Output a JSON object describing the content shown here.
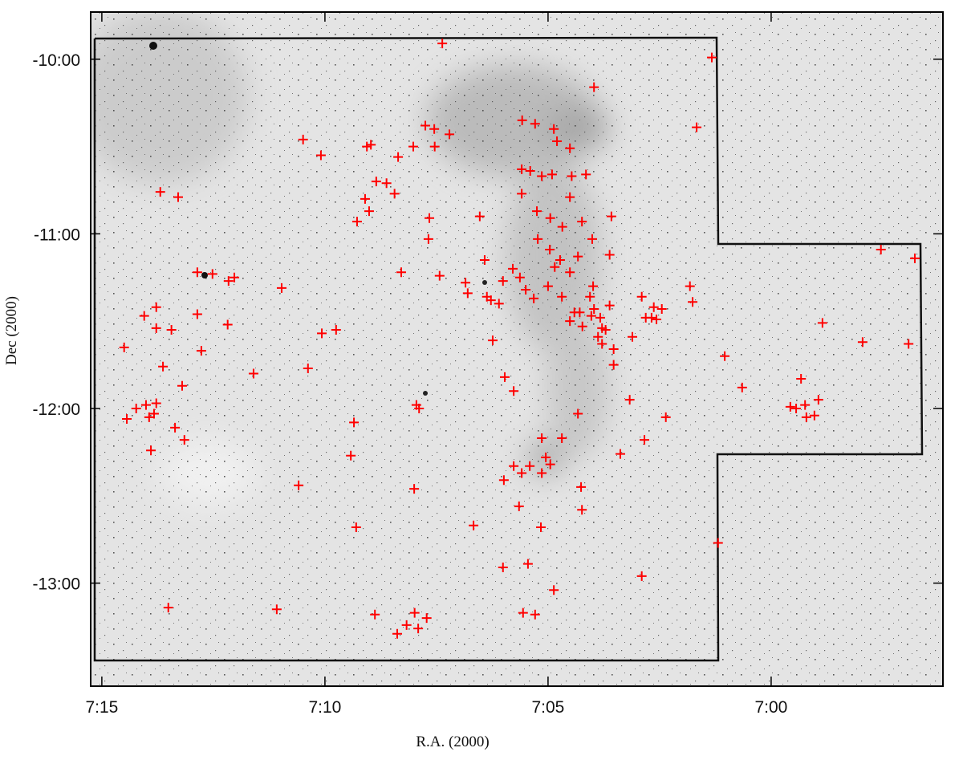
{
  "chart_data": {
    "type": "scatter",
    "x_label": "R.A. (2000)",
    "y_label": "Dec (2000)",
    "color": "#ff0000",
    "marker": "+",
    "xlim": [
      15.25,
      -3.85
    ],
    "ylim": [
      -13.59,
      -9.73
    ],
    "xticks": [
      {
        "value": 15,
        "label": "7:15"
      },
      {
        "value": 10,
        "label": "7:10"
      },
      {
        "value": 5,
        "label": "7:05"
      },
      {
        "value": 0,
        "label": "7:00"
      }
    ],
    "yticks": [
      {
        "value": -10,
        "label": "-10:00"
      },
      {
        "value": -11,
        "label": "-11:00"
      },
      {
        "value": -12,
        "label": "-12:00"
      },
      {
        "value": -13,
        "label": "-13:00"
      }
    ],
    "x": [
      14.5,
      14.05,
      13.78,
      13.78,
      13.44,
      13.63,
      13.69,
      13.29,
      12.86,
      12.52,
      12.16,
      12.03,
      12.86,
      12.77,
      12.18,
      13.2,
      13.15,
      13.36,
      13.9,
      14.44,
      14.23,
      14.01,
      13.94,
      13.78,
      13.83,
      13.51,
      11.6,
      10.97,
      11.08,
      10.49,
      10.09,
      10.07,
      9.75,
      10.38,
      10.59,
      9.35,
      9.42,
      9.3,
      9.28,
      9.1,
      9.01,
      9.06,
      8.97,
      8.85,
      8.62,
      8.44,
      8.36,
      8.29,
      8.88,
      8.38,
      8.17,
      7.99,
      7.72,
      7.91,
      8.0,
      7.95,
      7.89,
      8.02,
      7.75,
      7.55,
      7.54,
      7.21,
      7.37,
      7.66,
      7.68,
      7.43,
      6.85,
      6.8,
      6.53,
      6.42,
      6.37,
      6.24,
      6.67,
      6.28,
      5.97,
      5.77,
      6.01,
      6.1,
      5.79,
      5.63,
      5.5,
      5.32,
      5.77,
      5.99,
      5.59,
      5.41,
      6.01,
      5.65,
      5.56,
      5.29,
      5.45,
      5.16,
      4.87,
      5.05,
      5.14,
      4.95,
      4.69,
      4.33,
      5.14,
      5.58,
      5.29,
      4.87,
      4.8,
      4.51,
      5.59,
      5.4,
      5.14,
      4.91,
      4.47,
      3.97,
      4.15,
      5.59,
      5.25,
      4.95,
      4.68,
      4.51,
      5.23,
      4.96,
      4.73,
      4.51,
      4.85,
      4.33,
      5.0,
      4.69,
      4.41,
      4.06,
      3.99,
      3.97,
      3.83,
      3.71,
      3.88,
      4.23,
      4.51,
      3.62,
      3.53,
      3.79,
      4.03,
      4.29,
      3.79,
      3.53,
      3.58,
      3.62,
      4.24,
      4.01,
      3.11,
      3.17,
      2.9,
      2.81,
      2.63,
      2.45,
      2.68,
      2.57,
      2.84,
      3.38,
      4.26,
      4.24,
      2.9,
      2.36,
      1.82,
      1.76,
      1.67,
      1.33,
      1.19,
      1.04,
      0.65,
      -0.67,
      -0.43,
      -0.56,
      -0.76,
      -0.79,
      -0.97,
      -1.06,
      -1.15,
      -2.05,
      -2.46,
      -3.08,
      -3.22
    ],
    "y": [
      -11.65,
      -11.47,
      -11.42,
      -11.54,
      -11.55,
      -11.76,
      -10.76,
      -10.79,
      -11.22,
      -11.23,
      -11.27,
      -11.25,
      -11.46,
      -11.67,
      -11.52,
      -11.87,
      -12.18,
      -12.11,
      -12.24,
      -12.06,
      -12.0,
      -11.98,
      -12.05,
      -11.97,
      -12.03,
      -13.14,
      -11.8,
      -11.31,
      -13.15,
      -10.46,
      -10.55,
      -11.57,
      -11.55,
      -11.77,
      -12.44,
      -12.08,
      -12.27,
      -12.68,
      -10.93,
      -10.8,
      -10.87,
      -10.5,
      -10.49,
      -10.7,
      -10.71,
      -10.77,
      -10.56,
      -11.22,
      -13.18,
      -13.29,
      -13.24,
      -13.17,
      -13.2,
      -13.26,
      -12.46,
      -11.98,
      -12.0,
      -10.5,
      -10.38,
      -10.4,
      -10.5,
      -10.43,
      -9.91,
      -10.91,
      -11.03,
      -11.24,
      -11.28,
      -11.34,
      -10.9,
      -11.15,
      -11.36,
      -11.61,
      -12.67,
      -11.38,
      -11.82,
      -11.9,
      -11.27,
      -11.4,
      -11.2,
      -11.25,
      -11.32,
      -11.37,
      -12.33,
      -12.41,
      -12.37,
      -12.33,
      -12.91,
      -12.56,
      -13.17,
      -13.18,
      -12.89,
      -12.68,
      -13.04,
      -12.28,
      -12.37,
      -12.32,
      -12.17,
      -12.03,
      -12.17,
      -10.35,
      -10.37,
      -10.4,
      -10.47,
      -10.51,
      -10.63,
      -10.64,
      -10.67,
      -10.66,
      -10.67,
      -10.16,
      -10.66,
      -10.77,
      -10.87,
      -10.91,
      -10.96,
      -10.79,
      -11.03,
      -11.09,
      -11.15,
      -11.22,
      -11.19,
      -11.13,
      -11.3,
      -11.36,
      -11.45,
      -11.36,
      -11.3,
      -11.43,
      -11.48,
      -11.55,
      -11.59,
      -11.53,
      -11.5,
      -11.41,
      -11.66,
      -11.54,
      -11.47,
      -11.45,
      -11.63,
      -11.75,
      -10.9,
      -11.12,
      -10.93,
      -11.03,
      -11.59,
      -11.95,
      -11.36,
      -11.48,
      -11.42,
      -11.43,
      -11.48,
      -11.49,
      -12.18,
      -12.26,
      -12.45,
      -12.58,
      -12.96,
      -12.05,
      -11.3,
      -11.39,
      -10.39,
      -9.99,
      -12.77,
      -11.7,
      -11.88,
      -11.83,
      -11.99,
      -12.0,
      -11.98,
      -12.05,
      -12.04,
      -11.95,
      -11.51,
      -11.62,
      -11.09,
      -11.63,
      -11.14
    ]
  }
}
